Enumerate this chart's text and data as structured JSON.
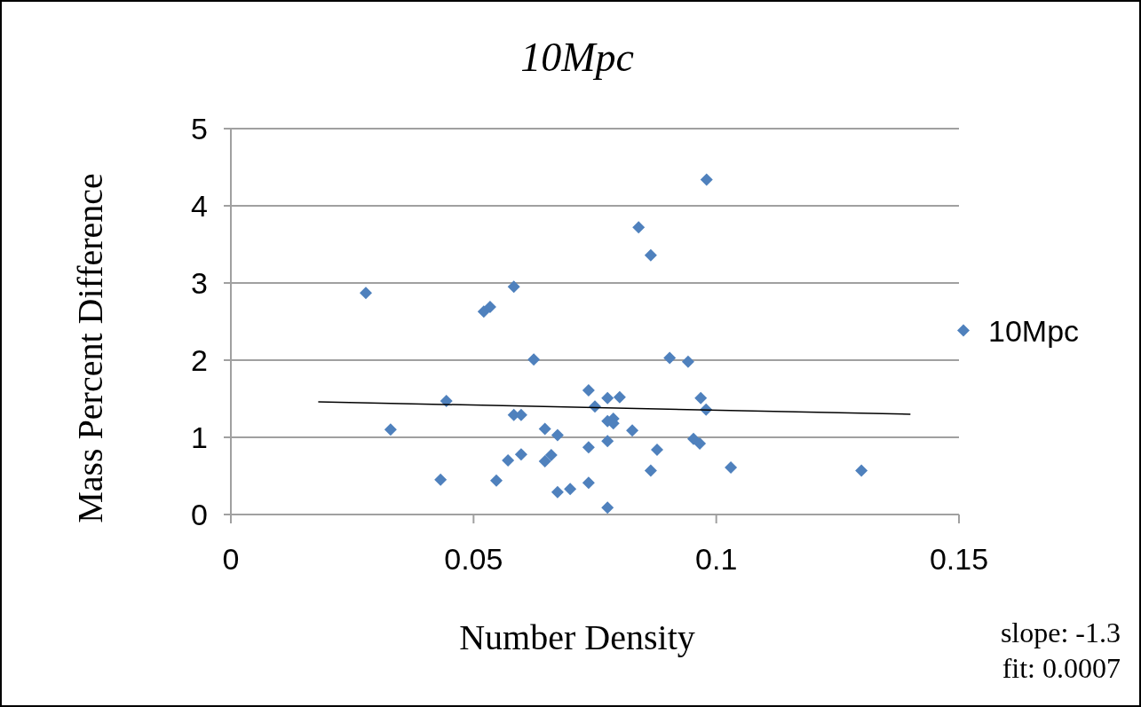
{
  "chart_data": {
    "type": "scatter",
    "title": "10Mpc",
    "xlabel": "Number Density",
    "ylabel": "Mass Percent Difference",
    "annotations": [
      "slope: -1.3",
      "fit: 0.0007"
    ],
    "xlim": [
      0,
      0.15
    ],
    "xticks": [
      0,
      0.05,
      0.1,
      0.15
    ],
    "ylim": [
      0,
      5
    ],
    "yticks": [
      0,
      1,
      2,
      3,
      4,
      5
    ],
    "grid": "y",
    "legend": "right",
    "marker": "diamond",
    "series": [
      {
        "name": "10Mpc",
        "color": "#4f81bd",
        "x": [
          0.0278,
          0.0329,
          0.0432,
          0.0444,
          0.0521,
          0.0534,
          0.0547,
          0.0571,
          0.0583,
          0.0583,
          0.0598,
          0.0598,
          0.0624,
          0.0647,
          0.0647,
          0.066,
          0.0673,
          0.0673,
          0.0699,
          0.0737,
          0.0737,
          0.0737,
          0.075,
          0.0776,
          0.0776,
          0.0776,
          0.0776,
          0.0788,
          0.0788,
          0.0801,
          0.0827,
          0.084,
          0.0865,
          0.0865,
          0.0878,
          0.0904,
          0.0942,
          0.0953,
          0.0966,
          0.0968,
          0.0979,
          0.098,
          0.103,
          0.1299
        ],
        "values": [
          2.87,
          1.1,
          0.45,
          1.47,
          2.63,
          2.69,
          0.44,
          0.7,
          2.95,
          1.29,
          1.29,
          0.78,
          2.01,
          1.11,
          0.69,
          0.77,
          1.03,
          0.29,
          0.33,
          1.61,
          0.87,
          0.41,
          1.4,
          1.51,
          1.21,
          0.95,
          0.09,
          1.24,
          1.18,
          1.52,
          1.09,
          3.72,
          3.36,
          0.57,
          0.84,
          2.03,
          1.98,
          0.98,
          0.92,
          1.51,
          1.36,
          4.34,
          0.61,
          0.57
        ]
      },
      {
        "type": "line",
        "color": "#000000",
        "x": [
          0.018,
          0.14
        ],
        "values": [
          1.46,
          1.3
        ],
        "marker": "none",
        "line_style": "solid"
      }
    ]
  }
}
